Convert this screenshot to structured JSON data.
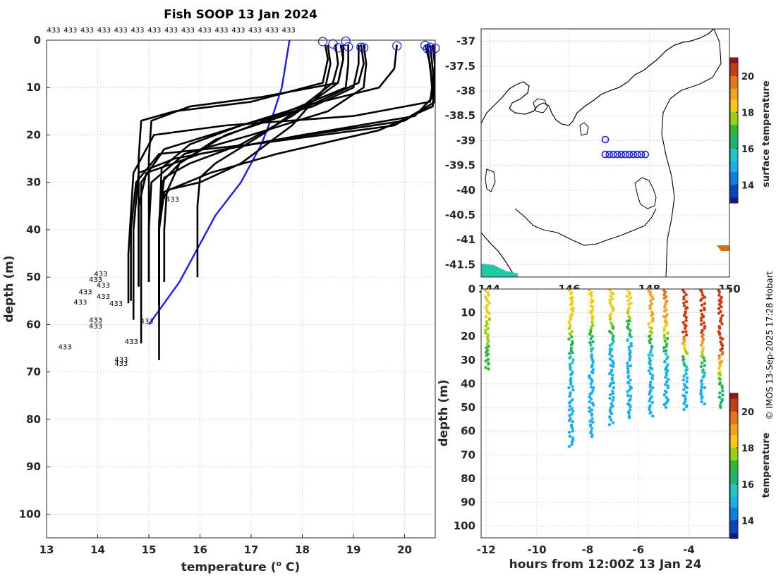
{
  "figure": {
    "title": "Fish SOOP 13 Jan 2024",
    "credit": "© IMOS 13-Sep-2025 17:28 Hobart"
  },
  "colors": {
    "profile": "#000000",
    "climatology": "#1a1aff",
    "marker": "#1a1aff",
    "grid": "#c8c8c8",
    "land": "#000000"
  },
  "colormap": [
    "#0c1a8a",
    "#0a44c6",
    "#0a7fe6",
    "#17b0ef",
    "#20c8c0",
    "#1db46c",
    "#2cb83a",
    "#9bd20f",
    "#f2cc10",
    "#f7a21a",
    "#e97418",
    "#cc3a12",
    "#a01010"
  ],
  "chart_data": [
    {
      "id": "profiles",
      "type": "line",
      "title": "Fish SOOP 13 Jan 2024",
      "xlabel": "temperature (",
      "xlabel_sup": "o",
      "xlabel_end": " C)",
      "ylabel": "depth (m)",
      "xlim": [
        13,
        20.6
      ],
      "ylim": [
        105,
        0
      ],
      "xticks": [
        13,
        14,
        15,
        16,
        17,
        18,
        19,
        20
      ],
      "yticks": [
        0,
        10,
        20,
        30,
        40,
        50,
        60,
        70,
        80,
        90,
        100
      ],
      "grid": true,
      "top_labels": [
        "433",
        "433",
        "433",
        "433",
        "433",
        "433",
        "433",
        "433",
        "433",
        "433",
        "433",
        "433",
        "433",
        "433",
        "433"
      ],
      "end_labels": [
        {
          "t": 15.3,
          "d": 33.5,
          "text": "433"
        },
        {
          "t": 14.8,
          "d": 59.2,
          "text": "433"
        },
        {
          "t": 14.5,
          "d": 63.5,
          "text": "433"
        },
        {
          "t": 13.9,
          "d": 49.2,
          "text": "433"
        },
        {
          "t": 13.8,
          "d": 50.4,
          "text": "433"
        },
        {
          "t": 13.95,
          "d": 51.6,
          "text": "433"
        },
        {
          "t": 13.6,
          "d": 53.0,
          "text": "433"
        },
        {
          "t": 13.95,
          "d": 54.0,
          "text": "433"
        },
        {
          "t": 14.2,
          "d": 55.5,
          "text": "433"
        },
        {
          "t": 13.5,
          "d": 55.2,
          "text": "433"
        },
        {
          "t": 13.8,
          "d": 59.0,
          "text": "433"
        },
        {
          "t": 13.8,
          "d": 60.2,
          "text": "433"
        },
        {
          "t": 13.2,
          "d": 64.6,
          "text": "433"
        },
        {
          "t": 14.3,
          "d": 67.3,
          "text": "433"
        },
        {
          "t": 14.3,
          "d": 68.1,
          "text": "433"
        }
      ],
      "series": [
        {
          "name": "profile 1",
          "x": [
            18.5,
            18.55,
            18.45,
            17.8,
            16.8,
            16.0,
            15.4,
            15.3,
            15.3
          ],
          "y": [
            1,
            5,
            10,
            18,
            26,
            30,
            31.5,
            33,
            33.5
          ]
        },
        {
          "name": "profile 2",
          "x": [
            18.65,
            18.7,
            18.6,
            18.0,
            17.2,
            16.3,
            16.0,
            15.95,
            15.95
          ],
          "y": [
            1,
            5,
            9,
            14,
            20,
            26,
            29,
            35,
            50
          ]
        },
        {
          "name": "profile 3",
          "x": [
            18.75,
            18.8,
            18.7,
            17.8,
            16.8,
            15.8,
            15.3,
            15.2,
            15.2
          ],
          "y": [
            1,
            4,
            9,
            16,
            22,
            26,
            29,
            38,
            67.5
          ]
        },
        {
          "name": "profile 4",
          "x": [
            18.9,
            18.9,
            18.85,
            17.5,
            16.3,
            15.6,
            15.35,
            15.3,
            15.3
          ],
          "y": [
            1,
            5,
            10,
            16,
            21,
            26,
            32,
            40,
            51
          ]
        },
        {
          "name": "profile 5",
          "x": [
            19.15,
            19.2,
            19.1,
            17.9,
            16.5,
            15.6,
            15.25,
            15.2,
            15.2
          ],
          "y": [
            1,
            5,
            9,
            15,
            20,
            26,
            30,
            40,
            56
          ]
        },
        {
          "name": "profile 6",
          "x": [
            19.2,
            19.25,
            19.2,
            18.5,
            17.0,
            15.7,
            15.05,
            15.0,
            15.0
          ],
          "y": [
            1,
            5,
            10,
            15,
            20,
            24,
            30,
            40,
            51
          ]
        },
        {
          "name": "profile 7",
          "x": [
            19.85,
            19.8,
            19.5,
            18.0,
            16.5,
            15.3,
            14.85,
            14.85,
            14.85
          ],
          "y": [
            1,
            6,
            10,
            14,
            19,
            23,
            30,
            40,
            64
          ]
        },
        {
          "name": "profile 8",
          "x": [
            20.4,
            20.5,
            20.55,
            20.2,
            18.0,
            16.0,
            14.95,
            14.8,
            14.8
          ],
          "y": [
            1,
            5,
            12,
            16,
            20,
            24,
            28,
            35,
            52
          ]
        },
        {
          "name": "profile 9",
          "x": [
            20.45,
            20.5,
            20.6,
            20.0,
            17.5,
            15.5,
            14.8,
            14.7,
            14.7
          ],
          "y": [
            1,
            6,
            13,
            17,
            21,
            25,
            28,
            40,
            59
          ]
        },
        {
          "name": "profile 10",
          "x": [
            20.5,
            20.55,
            20.6,
            19.8,
            17.0,
            15.2,
            14.75,
            14.65,
            14.65
          ],
          "y": [
            1,
            6,
            13,
            18,
            22,
            24,
            30,
            40,
            55
          ]
        },
        {
          "name": "profile 11",
          "x": [
            20.55,
            20.6,
            20.55,
            19.5,
            17.5,
            16.2,
            15.3,
            15.2,
            15.2
          ],
          "y": [
            1,
            6,
            14,
            19,
            24,
            28,
            32,
            40,
            56
          ]
        },
        {
          "name": "profile 12",
          "x": [
            20.6,
            20.6,
            20.5,
            19.0,
            16.5,
            15.1,
            14.7,
            14.6,
            14.6
          ],
          "y": [
            1,
            5,
            13,
            16,
            18,
            20,
            28,
            45,
            55.5
          ]
        },
        {
          "name": "profile 13",
          "x": [
            18.45,
            18.5,
            18.4,
            17.0,
            15.5,
            14.85,
            14.8,
            14.8
          ],
          "y": [
            1,
            4,
            9,
            13,
            15,
            17,
            25,
            52
          ]
        },
        {
          "name": "profile 14",
          "x": [
            18.8,
            18.8,
            18.7,
            17.2,
            15.8,
            15.05,
            15.0,
            15.0
          ],
          "y": [
            1,
            4,
            9,
            12,
            14,
            17,
            25,
            51
          ]
        },
        {
          "name": "profile 15",
          "x": [
            19.1,
            19.1,
            19.0,
            18.2,
            16.8,
            15.8,
            15.25,
            15.2,
            15.2
          ],
          "y": [
            1,
            5,
            10,
            14,
            18,
            22,
            27,
            40,
            56
          ]
        }
      ],
      "climatology": {
        "name": "climatology",
        "x": [
          17.75,
          17.6,
          17.45,
          17.2,
          16.8,
          16.3,
          15.95,
          15.6,
          15.0
        ],
        "y": [
          0,
          10,
          15,
          22,
          30,
          37,
          44,
          51,
          60
        ]
      },
      "surface_markers": [
        {
          "t": 18.4,
          "d": 0.3
        },
        {
          "t": 18.6,
          "d": 0.8
        },
        {
          "t": 18.7,
          "d": 1.6
        },
        {
          "t": 18.85,
          "d": 0.2
        },
        {
          "t": 18.9,
          "d": 1.4
        },
        {
          "t": 19.15,
          "d": 1.5
        },
        {
          "t": 19.2,
          "d": 1.6
        },
        {
          "t": 19.85,
          "d": 1.2
        },
        {
          "t": 20.4,
          "d": 1.1
        },
        {
          "t": 20.45,
          "d": 1.8
        },
        {
          "t": 20.5,
          "d": 1.5
        },
        {
          "t": 20.6,
          "d": 1.7
        }
      ]
    },
    {
      "id": "map",
      "type": "scatter",
      "title": "",
      "xlabel": "",
      "ylabel": "",
      "xlim": [
        143.8,
        150.0
      ],
      "ylim": [
        -41.75,
        -36.75
      ],
      "yticks": [
        -37,
        -37.5,
        -38,
        -38.5,
        -39,
        -39.5,
        -40,
        -40.5,
        -41,
        -41.5
      ],
      "ytick_labels": [
        "-37",
        "-37.5",
        "-38",
        "-38.5",
        "-39",
        "-39.5",
        "-40",
        "-40.5",
        "-41",
        "-41.5"
      ],
      "xticks": [
        144,
        146,
        148,
        150
      ],
      "xtick_labels": [
        "144",
        "146",
        "148",
        "150"
      ],
      "drop_positions": [
        {
          "lon": 146.9,
          "lat": -38.98
        },
        {
          "lon": 146.9,
          "lat": -39.28
        },
        {
          "lon": 147.0,
          "lat": -39.28
        },
        {
          "lon": 147.1,
          "lat": -39.28
        },
        {
          "lon": 147.2,
          "lat": -39.28
        },
        {
          "lon": 147.3,
          "lat": -39.28
        },
        {
          "lon": 147.4,
          "lat": -39.28
        },
        {
          "lon": 147.5,
          "lat": -39.28
        },
        {
          "lon": 147.6,
          "lat": -39.28
        },
        {
          "lon": 147.7,
          "lat": -39.28
        },
        {
          "lon": 147.8,
          "lat": -39.28
        },
        {
          "lon": 147.9,
          "lat": -39.28
        }
      ],
      "colorbar": {
        "label": "surface temperature",
        "range": [
          13,
          21
        ],
        "ticks": [
          14,
          16,
          18,
          20
        ],
        "tick_labels": [
          "14",
          "16",
          "18",
          "20"
        ]
      }
    },
    {
      "id": "timeseries",
      "type": "scatter",
      "xlabel": "hours from 12:00Z 13 Jan 24",
      "ylabel": "depth (m)",
      "xlim": [
        -12.2,
        -2.4
      ],
      "ylim": [
        105,
        0
      ],
      "xticks": [
        -12,
        -10,
        -8,
        -6,
        -4
      ],
      "xtick_labels": [
        "-12",
        "-10",
        "-8",
        "-6",
        "-4"
      ],
      "yticks": [
        0,
        10,
        20,
        30,
        40,
        50,
        60,
        70,
        80,
        90,
        100
      ],
      "ytick_labels": [
        "0",
        "10",
        "20",
        "30",
        "40",
        "50",
        "60",
        "70",
        "80",
        "90",
        "100"
      ],
      "casts": [
        {
          "h": -11.95,
          "max_depth": 34,
          "t_surface": 18.2,
          "t_bottom": 16.2,
          "mld": 12,
          "tc": 30
        },
        {
          "h": -8.65,
          "max_depth": 67,
          "t_surface": 18.3,
          "t_bottom": 15.0,
          "mld": 15,
          "tc": 22
        },
        {
          "h": -7.85,
          "max_depth": 63,
          "t_surface": 18.5,
          "t_bottom": 15.1,
          "mld": 12,
          "tc": 16
        },
        {
          "h": -7.05,
          "max_depth": 58,
          "t_surface": 18.6,
          "t_bottom": 15.2,
          "mld": 10,
          "tc": 14
        },
        {
          "h": -6.35,
          "max_depth": 55,
          "t_surface": 18.5,
          "t_bottom": 15.1,
          "mld": 8,
          "tc": 12
        },
        {
          "h": -5.5,
          "max_depth": 54,
          "t_surface": 19.2,
          "t_bottom": 15.0,
          "mld": 12,
          "tc": 18
        },
        {
          "h": -4.9,
          "max_depth": 50,
          "t_surface": 19.4,
          "t_bottom": 15.0,
          "mld": 12,
          "tc": 20
        },
        {
          "h": -4.15,
          "max_depth": 51,
          "t_surface": 20.6,
          "t_bottom": 14.8,
          "mld": 18,
          "tc": 24
        },
        {
          "h": -3.45,
          "max_depth": 49,
          "t_surface": 20.4,
          "t_bottom": 15.0,
          "mld": 18,
          "tc": 26
        },
        {
          "h": -2.75,
          "max_depth": 50,
          "t_surface": 20.6,
          "t_bottom": 16.5,
          "mld": 24,
          "tc": 30
        }
      ],
      "colorbar": {
        "label": "temperature",
        "range": [
          13,
          21
        ],
        "ticks": [
          14,
          16,
          18,
          20
        ],
        "tick_labels": [
          "14",
          "16",
          "18",
          "20"
        ]
      }
    }
  ]
}
